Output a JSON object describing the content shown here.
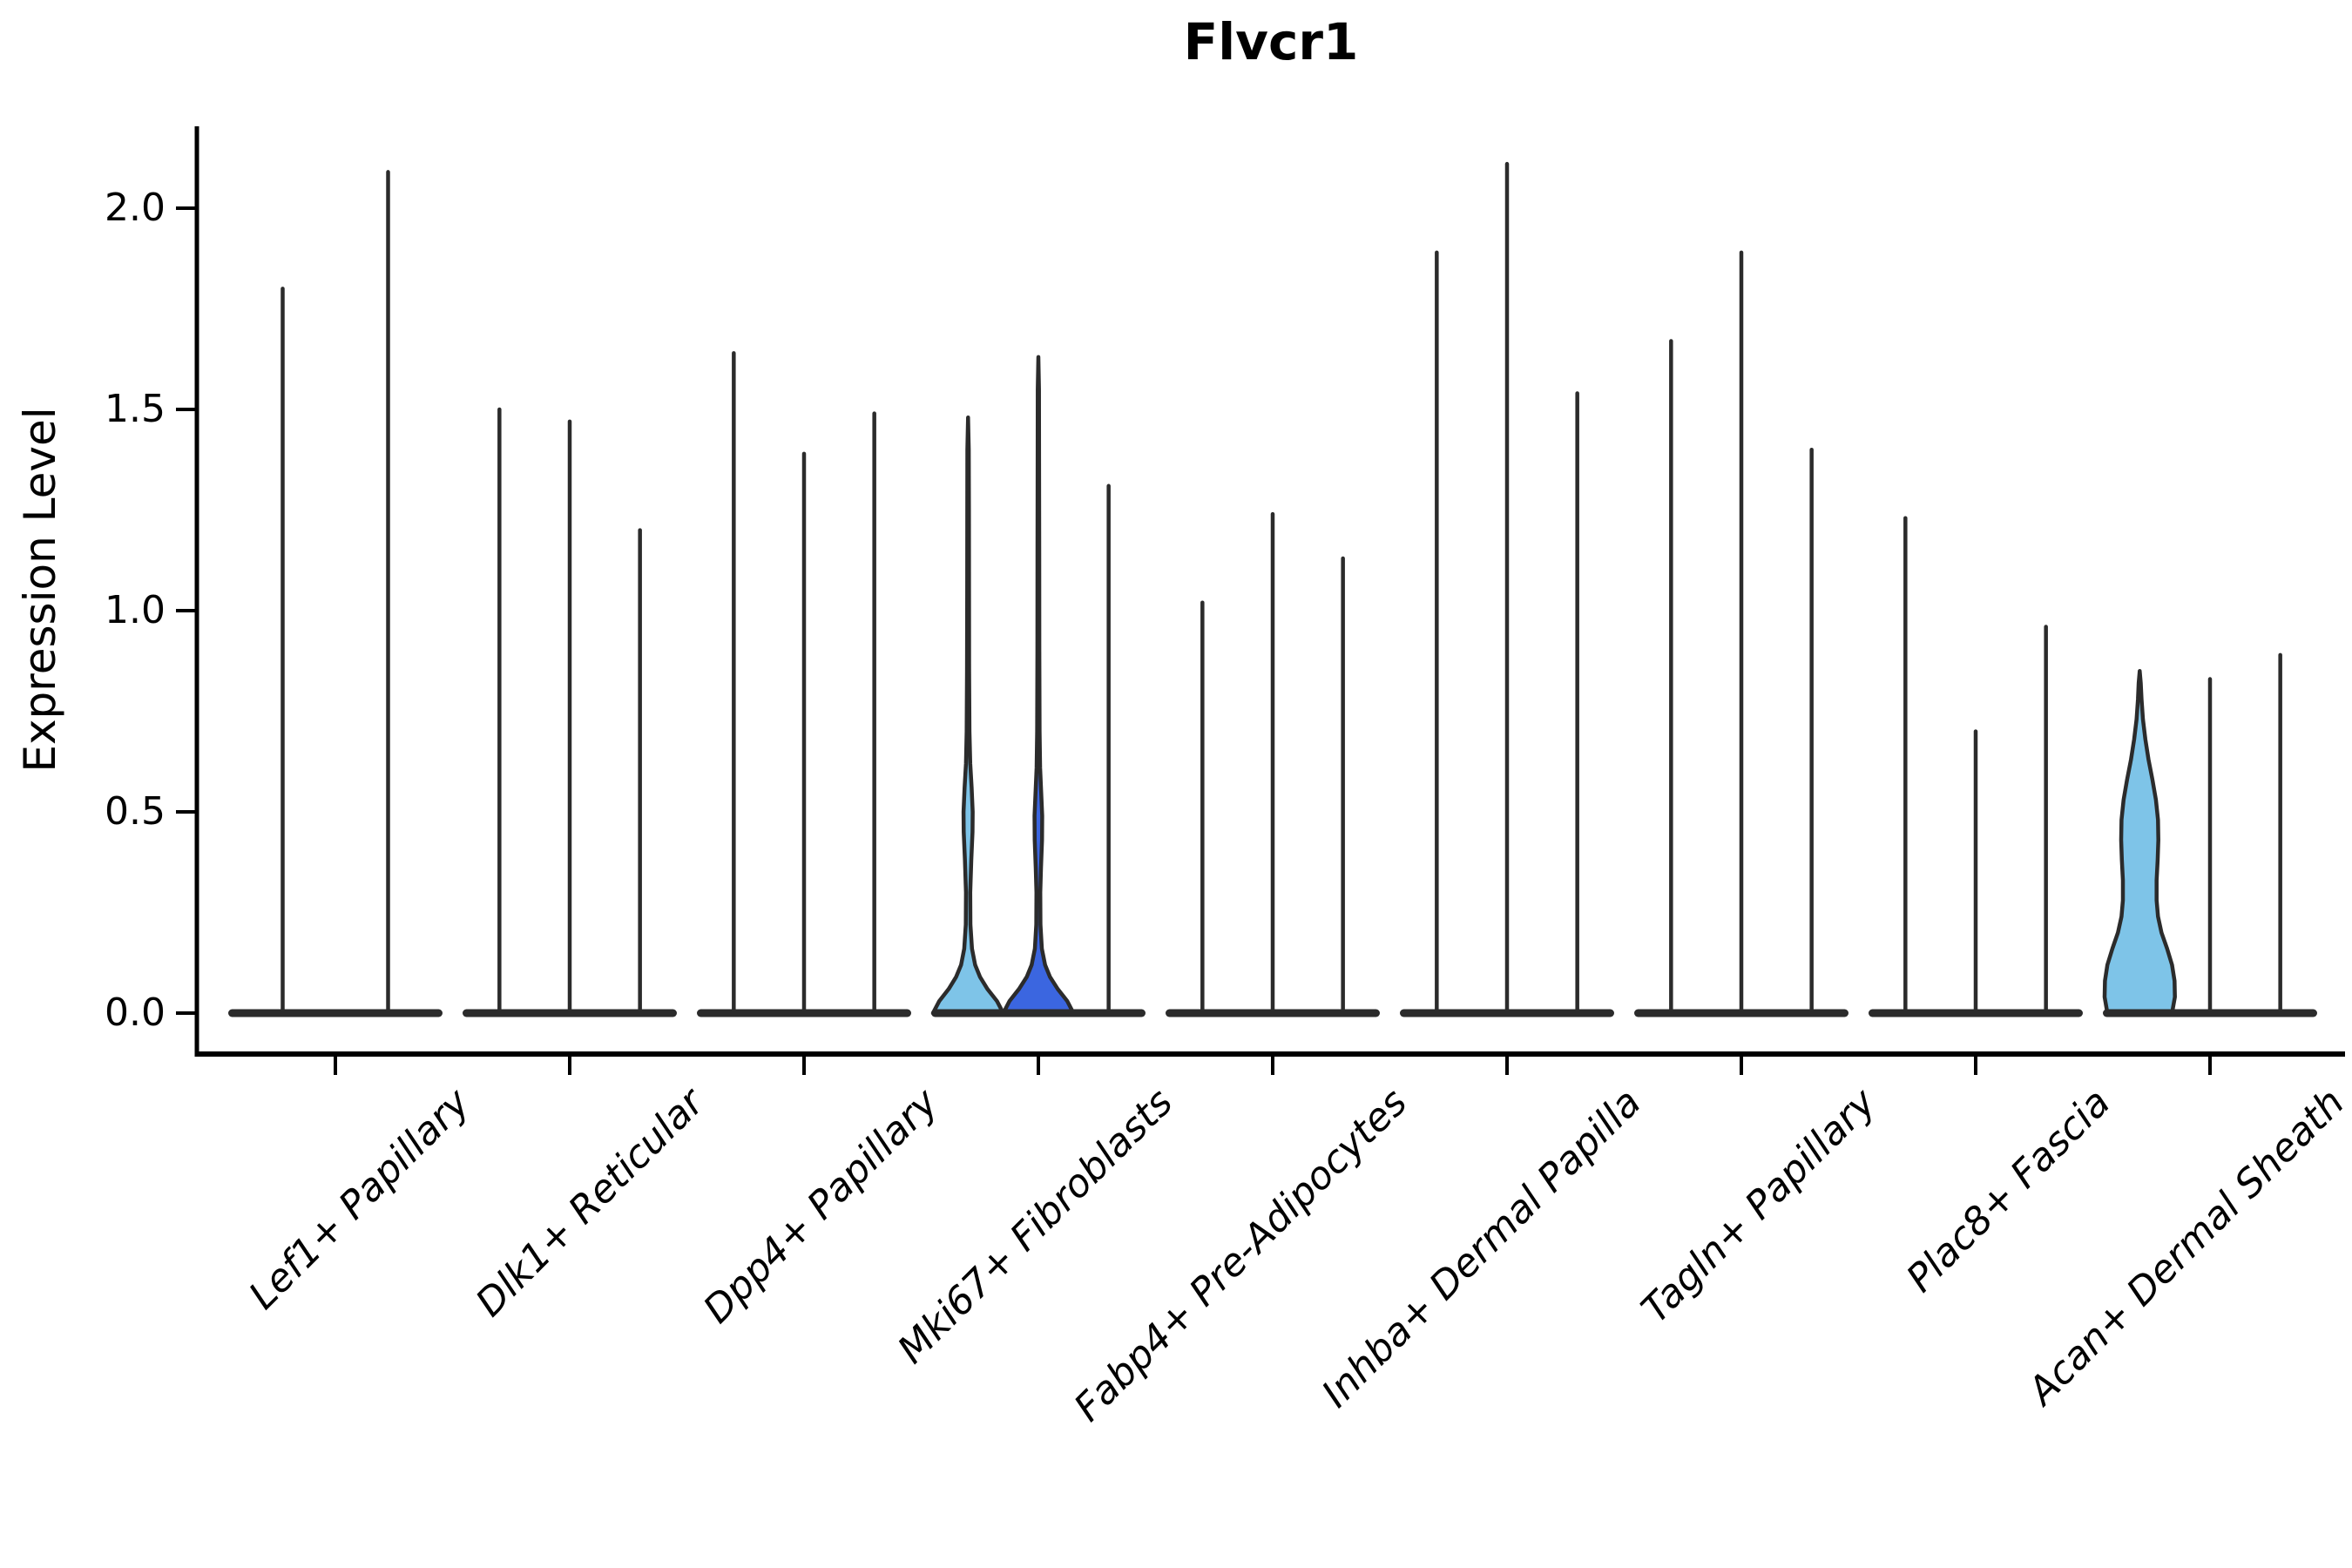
{
  "title": "Flvcr1",
  "ylabel": "Expression Level",
  "colors": {
    "light_blue_fill": "#7EC4E8",
    "dark_blue_fill": "#3B66E0",
    "line": "#2B2B2B",
    "axis": "#000000"
  },
  "chart_data": {
    "type": "violin",
    "title": "Flvcr1",
    "xlabel": "",
    "ylabel": "Expression Level",
    "ylim": [
      -0.1,
      2.25
    ],
    "yticks": [
      0.0,
      0.5,
      1.0,
      1.5,
      2.0
    ],
    "ytick_labels": [
      "0.0",
      "0.5",
      "1.0",
      "1.5",
      "2.0"
    ],
    "grid": false,
    "legend": "none",
    "categories": [
      "Lef1+ Papillary",
      "Dlk1+ Reticular",
      "Dpp4+ Papillary",
      "Mki67+ Fibroblasts",
      "Fabp4+ Pre-Adipocytes",
      "Inhba+ Dermal Papilla",
      "Tagln+ Papillary",
      "Plac8+ Fascia",
      "Acan+ Dermal Sheath"
    ],
    "groups": [
      {
        "label": "Lef1+ Papillary",
        "violins": [
          {
            "max": 1.8,
            "filled": false
          },
          {
            "max": 2.09,
            "filled": false
          }
        ]
      },
      {
        "label": "Dlk1+ Reticular",
        "violins": [
          {
            "max": 1.5,
            "filled": false
          },
          {
            "max": 1.47,
            "filled": false
          },
          {
            "max": 1.2,
            "filled": false
          }
        ]
      },
      {
        "label": "Dpp4+ Papillary",
        "violins": [
          {
            "max": 1.64,
            "filled": false
          },
          {
            "max": 1.39,
            "filled": false
          },
          {
            "max": 1.49,
            "filled": false
          }
        ]
      },
      {
        "label": "Mki67+ Fibroblasts",
        "violins": [
          {
            "max": 1.48,
            "filled": true,
            "fill": "#7EC4E8",
            "profile": [
              [
                0,
                1.0
              ],
              [
                0.03,
                0.82
              ],
              [
                0.06,
                0.55
              ],
              [
                0.09,
                0.34
              ],
              [
                0.12,
                0.2
              ],
              [
                0.16,
                0.11
              ],
              [
                0.22,
                0.065
              ],
              [
                0.3,
                0.06
              ],
              [
                0.38,
                0.09
              ],
              [
                0.45,
                0.125
              ],
              [
                0.5,
                0.13
              ],
              [
                0.56,
                0.1
              ],
              [
                0.62,
                0.06
              ],
              [
                0.7,
                0.04
              ],
              [
                0.85,
                0.03
              ],
              [
                1.05,
                0.026
              ],
              [
                1.25,
                0.024
              ],
              [
                1.4,
                0.02
              ],
              [
                1.48,
                0.0
              ]
            ]
          },
          {
            "max": 1.63,
            "filled": true,
            "fill": "#3B66E0",
            "profile": [
              [
                0,
                1.0
              ],
              [
                0.03,
                0.82
              ],
              [
                0.06,
                0.55
              ],
              [
                0.09,
                0.33
              ],
              [
                0.12,
                0.19
              ],
              [
                0.16,
                0.1
              ],
              [
                0.22,
                0.06
              ],
              [
                0.3,
                0.055
              ],
              [
                0.36,
                0.075
              ],
              [
                0.43,
                0.105
              ],
              [
                0.49,
                0.11
              ],
              [
                0.55,
                0.08
              ],
              [
                0.61,
                0.05
              ],
              [
                0.7,
                0.035
              ],
              [
                0.9,
                0.028
              ],
              [
                1.15,
                0.024
              ],
              [
                1.4,
                0.021
              ],
              [
                1.55,
                0.018
              ],
              [
                1.63,
                0.0
              ]
            ]
          },
          {
            "max": 1.31,
            "filled": false
          }
        ]
      },
      {
        "label": "Fabp4+ Pre-Adipocytes",
        "violins": [
          {
            "max": 1.02,
            "filled": false
          },
          {
            "max": 1.24,
            "filled": false
          },
          {
            "max": 1.13,
            "filled": false
          }
        ]
      },
      {
        "label": "Inhba+ Dermal Papilla",
        "violins": [
          {
            "max": 1.89,
            "filled": false
          },
          {
            "max": 2.11,
            "filled": false
          },
          {
            "max": 1.54,
            "filled": false
          }
        ]
      },
      {
        "label": "Tagln+ Papillary",
        "violins": [
          {
            "max": 1.67,
            "filled": false
          },
          {
            "max": 1.89,
            "filled": false
          },
          {
            "max": 1.4,
            "filled": false
          }
        ]
      },
      {
        "label": "Plac8+ Fascia",
        "violins": [
          {
            "max": 1.23,
            "filled": false
          },
          {
            "max": 0.7,
            "filled": false
          },
          {
            "max": 0.96,
            "filled": false
          }
        ]
      },
      {
        "label": "Acan+ Dermal Sheath",
        "violins": [
          {
            "max": 0.85,
            "filled": true,
            "fill": "#7EC4E8",
            "profile": [
              [
                0,
                0.92
              ],
              [
                0.04,
                1.0
              ],
              [
                0.08,
                0.99
              ],
              [
                0.12,
                0.92
              ],
              [
                0.16,
                0.78
              ],
              [
                0.2,
                0.62
              ],
              [
                0.24,
                0.52
              ],
              [
                0.28,
                0.48
              ],
              [
                0.33,
                0.48
              ],
              [
                0.38,
                0.51
              ],
              [
                0.43,
                0.53
              ],
              [
                0.48,
                0.52
              ],
              [
                0.53,
                0.46
              ],
              [
                0.58,
                0.36
              ],
              [
                0.63,
                0.25
              ],
              [
                0.68,
                0.16
              ],
              [
                0.73,
                0.09
              ],
              [
                0.78,
                0.05
              ],
              [
                0.82,
                0.03
              ],
              [
                0.85,
                0.0
              ]
            ]
          },
          {
            "max": 0.83,
            "filled": false
          },
          {
            "max": 0.89,
            "filled": false
          }
        ]
      }
    ]
  }
}
